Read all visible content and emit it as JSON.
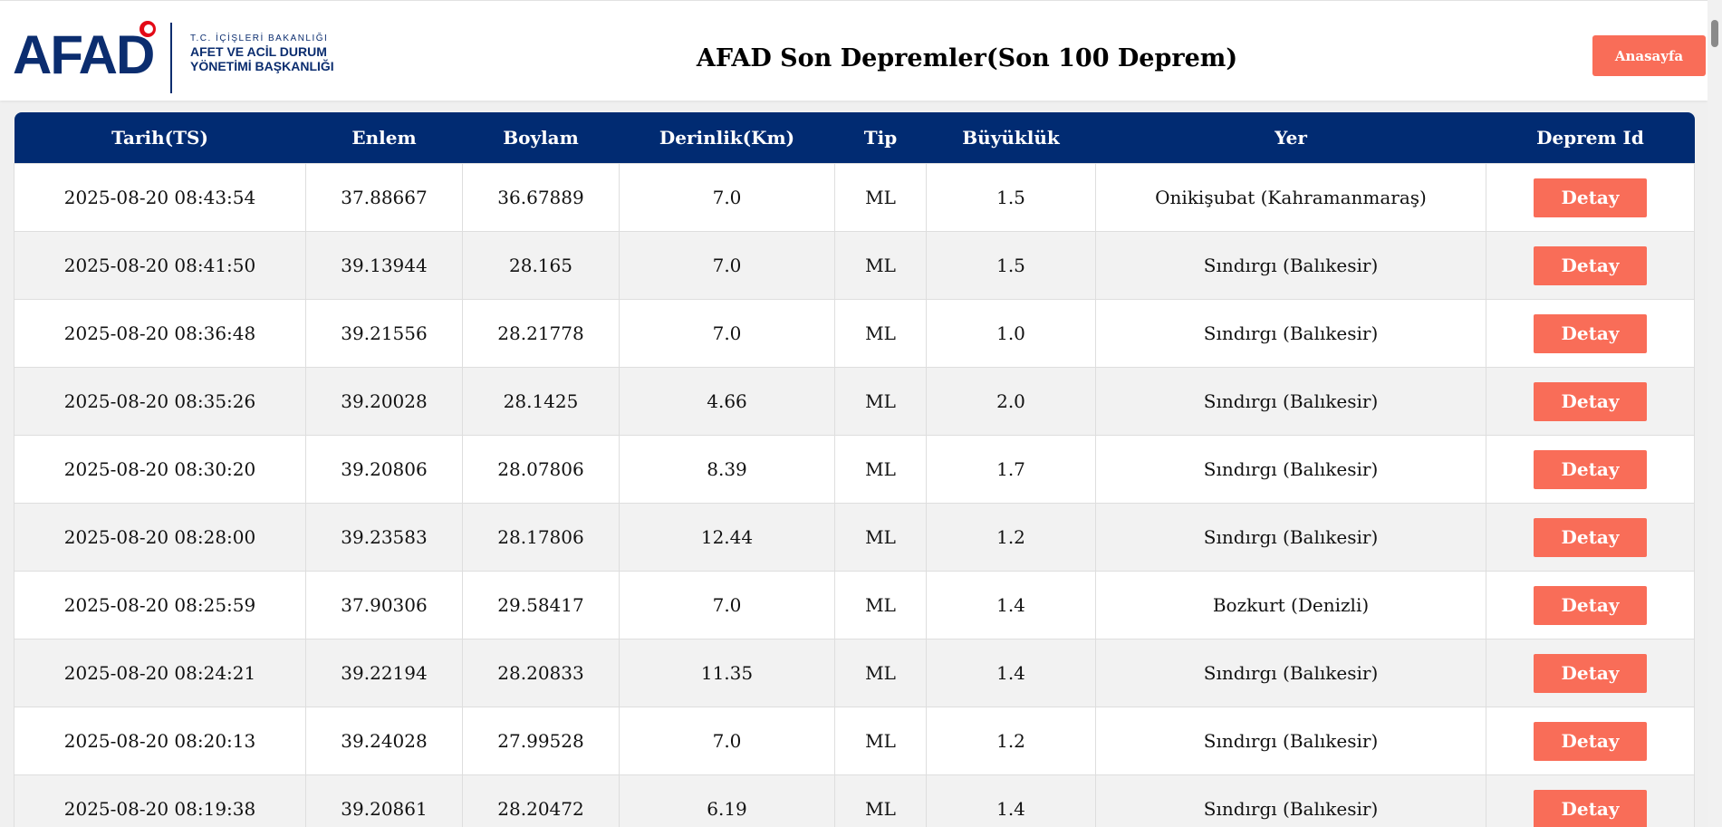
{
  "header": {
    "logo": {
      "brand": "AFAD",
      "line1": "T.C. İÇİŞLERİ BAKANLIĞI",
      "line2": "AFET VE ACİL DURUM",
      "line3": "YÖNETİMİ BAŞKANLIĞI"
    },
    "title": "AFAD Son Depremler(Son 100 Deprem)",
    "home_button": "Anasayfa"
  },
  "colors": {
    "header_bar": "#012b72",
    "button": "#f96d58",
    "brand_blue": "#0b2d6f",
    "flag_red": "#e30a17"
  },
  "table": {
    "columns": [
      "Tarih(TS)",
      "Enlem",
      "Boylam",
      "Derinlik(Km)",
      "Tip",
      "Büyüklük",
      "Yer",
      "Deprem Id"
    ],
    "detail_label": "Detay",
    "rows": [
      {
        "date": "2025-08-20 08:43:54",
        "lat": "37.88667",
        "lon": "36.67889",
        "depth": "7.0",
        "type": "ML",
        "mag": "1.5",
        "place": "Onikişubat (Kahramanmaraş)"
      },
      {
        "date": "2025-08-20 08:41:50",
        "lat": "39.13944",
        "lon": "28.165",
        "depth": "7.0",
        "type": "ML",
        "mag": "1.5",
        "place": "Sındırgı (Balıkesir)"
      },
      {
        "date": "2025-08-20 08:36:48",
        "lat": "39.21556",
        "lon": "28.21778",
        "depth": "7.0",
        "type": "ML",
        "mag": "1.0",
        "place": "Sındırgı (Balıkesir)"
      },
      {
        "date": "2025-08-20 08:35:26",
        "lat": "39.20028",
        "lon": "28.1425",
        "depth": "4.66",
        "type": "ML",
        "mag": "2.0",
        "place": "Sındırgı (Balıkesir)"
      },
      {
        "date": "2025-08-20 08:30:20",
        "lat": "39.20806",
        "lon": "28.07806",
        "depth": "8.39",
        "type": "ML",
        "mag": "1.7",
        "place": "Sındırgı (Balıkesir)"
      },
      {
        "date": "2025-08-20 08:28:00",
        "lat": "39.23583",
        "lon": "28.17806",
        "depth": "12.44",
        "type": "ML",
        "mag": "1.2",
        "place": "Sındırgı (Balıkesir)"
      },
      {
        "date": "2025-08-20 08:25:59",
        "lat": "37.90306",
        "lon": "29.58417",
        "depth": "7.0",
        "type": "ML",
        "mag": "1.4",
        "place": "Bozkurt (Denizli)"
      },
      {
        "date": "2025-08-20 08:24:21",
        "lat": "39.22194",
        "lon": "28.20833",
        "depth": "11.35",
        "type": "ML",
        "mag": "1.4",
        "place": "Sındırgı (Balıkesir)"
      },
      {
        "date": "2025-08-20 08:20:13",
        "lat": "39.24028",
        "lon": "27.99528",
        "depth": "7.0",
        "type": "ML",
        "mag": "1.2",
        "place": "Sındırgı (Balıkesir)"
      },
      {
        "date": "2025-08-20 08:19:38",
        "lat": "39.20861",
        "lon": "28.20472",
        "depth": "6.19",
        "type": "ML",
        "mag": "1.4",
        "place": "Sındırgı (Balıkesir)"
      }
    ]
  }
}
